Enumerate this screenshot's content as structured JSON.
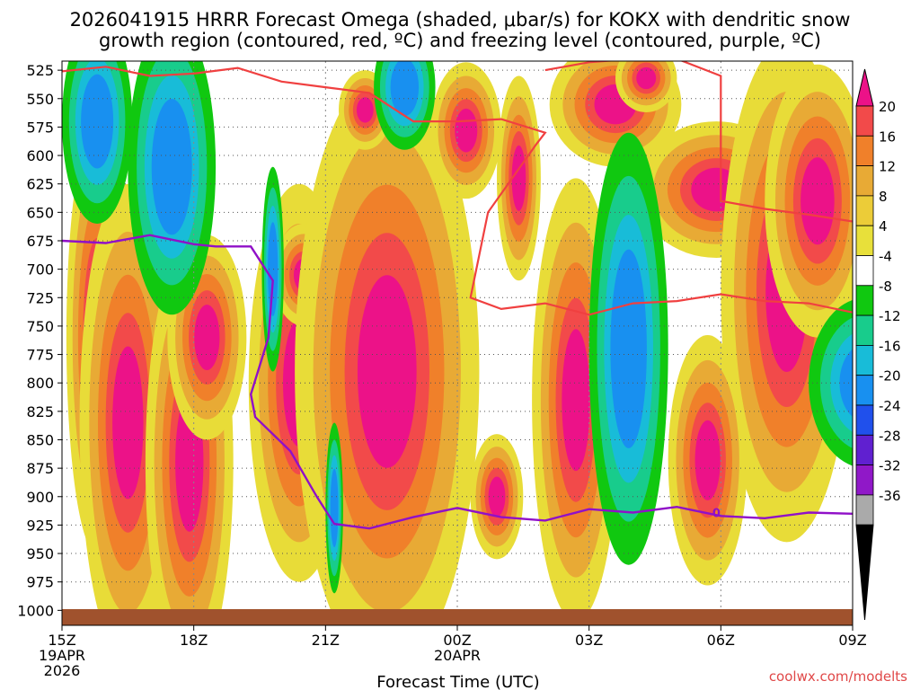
{
  "chart_data": {
    "type": "heatmap",
    "title_line1": "2026041915 HRRR Forecast Omega (shaded, μbar/s) for KOKX with dendritic snow",
    "title_line2": "growth region (contoured, red, ºC) and freezing level (contoured, purple, ºC)",
    "xlabel": "Forecast Time (UTC)",
    "x_ticks": [
      {
        "hour": 0,
        "label": "15Z",
        "sub": "19APR",
        "sub2": "2026"
      },
      {
        "hour": 3,
        "label": "18Z"
      },
      {
        "hour": 6,
        "label": "21Z"
      },
      {
        "hour": 9,
        "label": "00Z",
        "sub": "20APR"
      },
      {
        "hour": 12,
        "label": "03Z"
      },
      {
        "hour": 15,
        "label": "06Z"
      },
      {
        "hour": 18,
        "label": "09Z"
      }
    ],
    "x_range_hours": [
      0,
      18
    ],
    "y_ticks": [
      525,
      550,
      575,
      600,
      625,
      650,
      675,
      700,
      725,
      750,
      775,
      800,
      825,
      850,
      875,
      900,
      925,
      950,
      975,
      1000
    ],
    "y_range_hpa": [
      517,
      1010
    ],
    "colorbar": {
      "labels": [
        "20",
        "16",
        "12",
        "8",
        "4",
        "-4",
        "-8",
        "-12",
        "-16",
        "-20",
        "-24",
        "-28",
        "-32",
        "-36"
      ],
      "colors": [
        "#f24a4a",
        "#f0802a",
        "#e8aa35",
        "#eccc38",
        "#e8e03a",
        "#ffffff",
        "#10c810",
        "#18cc8c",
        "#18bcd8",
        "#1890f0",
        "#2050ec",
        "#6020d0",
        "#9018c8",
        "#aaaaaa"
      ],
      "top_color": "#ec1288",
      "bottom_color": "#000000"
    },
    "freezing_level_label": "0",
    "colors": {
      "pink": "#ec1288",
      "red": "#f24a4a",
      "orange": "#f0802a",
      "lightorange": "#e8aa35",
      "yellow": "#e8dc38",
      "green": "#10c810",
      "teal": "#18cc8c",
      "cyan": "#18bcd8",
      "blue": "#1890f0",
      "dgz": "#f04040",
      "freezing": "#9010c8",
      "ground": "#a0522d"
    },
    "fields": [
      {
        "kind": "lift",
        "t": 0.8,
        "p": 760,
        "hw": 0.7,
        "h": 190
      },
      {
        "kind": "lift",
        "t": 1.5,
        "p": 835,
        "hw": 1.1,
        "h": 210
      },
      {
        "kind": "lift",
        "t": 2.9,
        "p": 870,
        "hw": 1.0,
        "h": 190
      },
      {
        "kind": "lift",
        "t": 3.3,
        "p": 760,
        "hw": 0.9,
        "h": 90
      },
      {
        "kind": "lift",
        "t": 5.4,
        "p": 800,
        "hw": 1.15,
        "h": 175
      },
      {
        "kind": "lift",
        "t": 5.5,
        "p": 705,
        "hw": 0.7,
        "h": 45
      },
      {
        "kind": "lift",
        "t": 7.4,
        "p": 790,
        "hw": 2.1,
        "h": 265
      },
      {
        "kind": "lift",
        "t": 6.9,
        "p": 560,
        "hw": 0.6,
        "h": 35
      },
      {
        "kind": "lift",
        "t": 9.9,
        "p": 900,
        "hw": 0.6,
        "h": 55
      },
      {
        "kind": "lift",
        "t": 9.2,
        "p": 578,
        "hw": 0.8,
        "h": 60
      },
      {
        "kind": "lift",
        "t": 10.4,
        "p": 620,
        "hw": 0.5,
        "h": 90
      },
      {
        "kind": "lift",
        "t": 11.7,
        "p": 815,
        "hw": 1.0,
        "h": 195
      },
      {
        "kind": "lift",
        "t": 12.6,
        "p": 555,
        "hw": 1.5,
        "h": 55
      },
      {
        "kind": "lift",
        "t": 13.3,
        "p": 532,
        "hw": 0.7,
        "h": 30
      },
      {
        "kind": "lift",
        "t": 14.9,
        "p": 630,
        "hw": 1.8,
        "h": 60
      },
      {
        "kind": "lift",
        "t": 16.5,
        "p": 720,
        "hw": 1.5,
        "h": 220
      },
      {
        "kind": "lift",
        "t": 14.7,
        "p": 868,
        "hw": 0.9,
        "h": 110
      },
      {
        "kind": "lift",
        "t": 17.2,
        "p": 640,
        "hw": 1.2,
        "h": 120
      },
      {
        "kind": "sink",
        "t": 0.8,
        "p": 570,
        "hw": 0.8,
        "h": 90
      },
      {
        "kind": "sink",
        "t": 2.5,
        "p": 610,
        "hw": 1.0,
        "h": 130
      },
      {
        "kind": "sink",
        "t": 7.8,
        "p": 540,
        "hw": 0.7,
        "h": 55
      },
      {
        "kind": "sink",
        "t": 12.9,
        "p": 770,
        "hw": 0.9,
        "h": 190
      },
      {
        "kind": "sink",
        "t": 4.8,
        "p": 700,
        "hw": 0.25,
        "h": 90
      },
      {
        "kind": "sink",
        "t": 6.2,
        "p": 910,
        "hw": 0.2,
        "h": 75
      },
      {
        "kind": "sink",
        "t": 18.3,
        "p": 800,
        "hw": 1.3,
        "h": 75
      }
    ],
    "dgz_lines": [
      [
        [
          0,
          526
        ],
        [
          1,
          522
        ],
        [
          2,
          530
        ],
        [
          3,
          528
        ],
        [
          4,
          523
        ],
        [
          5,
          535
        ],
        [
          6,
          540
        ],
        [
          7,
          545
        ],
        [
          8,
          570
        ],
        [
          9,
          570
        ],
        [
          10,
          568
        ],
        [
          11,
          580
        ],
        [
          10.8,
          590
        ],
        [
          9.7,
          650
        ],
        [
          9.3,
          725
        ],
        [
          10,
          735
        ],
        [
          11,
          730
        ],
        [
          12,
          740
        ],
        [
          13,
          730
        ],
        [
          14,
          728
        ],
        [
          15,
          722
        ],
        [
          16,
          728
        ],
        [
          17,
          730
        ],
        [
          18,
          738
        ]
      ],
      [
        [
          11,
          525
        ],
        [
          12,
          518
        ],
        [
          13,
          515
        ],
        [
          14,
          515
        ],
        [
          15,
          530
        ],
        [
          15,
          560
        ],
        [
          15,
          610
        ],
        [
          15,
          640
        ],
        [
          16,
          647
        ],
        [
          17,
          652
        ],
        [
          18,
          658
        ]
      ]
    ],
    "freezing_line": [
      [
        0,
        675
      ],
      [
        1,
        677
      ],
      [
        2,
        670
      ],
      [
        3,
        678
      ],
      [
        3.5,
        680
      ],
      [
        4.3,
        680
      ],
      [
        4.8,
        710
      ],
      [
        4.7,
        760
      ],
      [
        4.3,
        810
      ],
      [
        4.4,
        830
      ],
      [
        5.2,
        860
      ],
      [
        5.8,
        900
      ],
      [
        6.2,
        924
      ],
      [
        7,
        928
      ],
      [
        8,
        918
      ],
      [
        9,
        910
      ],
      [
        10,
        918
      ],
      [
        11,
        921
      ],
      [
        12,
        911
      ],
      [
        13,
        914
      ],
      [
        14,
        909
      ],
      [
        15,
        917
      ],
      [
        16,
        919
      ],
      [
        17,
        914
      ],
      [
        18,
        915
      ]
    ],
    "watermark": "coolwx.com/modelts"
  }
}
